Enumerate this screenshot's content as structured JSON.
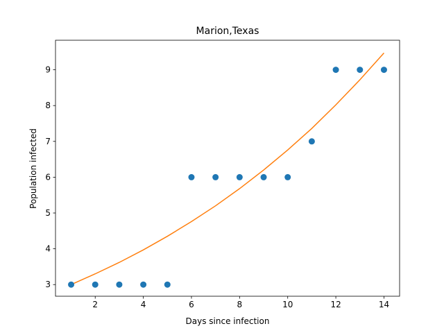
{
  "chart_data": {
    "type": "scatter",
    "title": "Marion,Texas",
    "xlabel": "Days since infection",
    "ylabel": "Population infected",
    "xlim": [
      0.35,
      14.65
    ],
    "ylim": [
      2.675,
      9.825
    ],
    "xticks": [
      2,
      4,
      6,
      8,
      10,
      12,
      14
    ],
    "yticks": [
      3,
      4,
      5,
      6,
      7,
      8,
      9
    ],
    "grid": false,
    "legend": "none",
    "series": [
      {
        "kind": "scatter",
        "color": "#1f77b4",
        "x": [
          1,
          2,
          3,
          4,
          5,
          6,
          7,
          8,
          9,
          10,
          11,
          12,
          13,
          14
        ],
        "y": [
          3,
          3,
          3,
          3,
          3,
          6,
          6,
          6,
          6,
          6,
          7,
          9,
          9,
          9
        ]
      },
      {
        "kind": "line",
        "color": "#ff7f0e",
        "x": [
          1,
          2,
          3,
          4,
          5,
          6,
          7,
          8,
          9,
          10,
          11,
          12,
          13,
          14
        ],
        "y": [
          3.0,
          3.3,
          3.62,
          3.97,
          4.35,
          4.76,
          5.2,
          5.68,
          6.2,
          6.76,
          7.36,
          8.02,
          8.72,
          9.47
        ]
      }
    ]
  }
}
